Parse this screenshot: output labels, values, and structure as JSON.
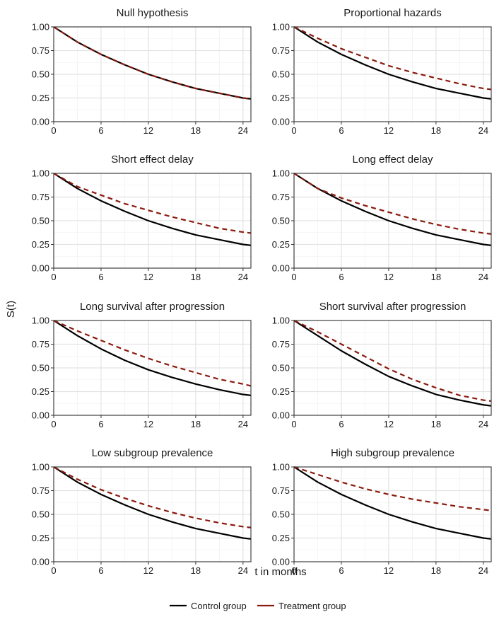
{
  "chart_data": {
    "type": "line",
    "layout": "2x4 facet grid",
    "ylabel": "S(t)",
    "xlabel": "t in months",
    "xlim": [
      0,
      25
    ],
    "ylim": [
      0,
      1
    ],
    "xticks": [
      "0",
      "6",
      "12",
      "18",
      "24"
    ],
    "yticks": [
      "0.00",
      "0.25",
      "0.50",
      "0.75",
      "1.00"
    ],
    "grid": true,
    "legend": {
      "position": "bottom",
      "entries": [
        {
          "name": "Control group",
          "color": "#000000",
          "style": "solid"
        },
        {
          "name": "Treatment group",
          "color": "#8B1A0E",
          "style": "dashed"
        }
      ]
    },
    "x": [
      0,
      3,
      6,
      9,
      12,
      15,
      18,
      21,
      24,
      25
    ],
    "panels": [
      {
        "title": "Null hypothesis",
        "control": [
          1.0,
          0.84,
          0.71,
          0.6,
          0.5,
          0.42,
          0.35,
          0.3,
          0.25,
          0.24
        ],
        "treatment": [
          1.0,
          0.84,
          0.71,
          0.6,
          0.5,
          0.42,
          0.35,
          0.3,
          0.25,
          0.24
        ]
      },
      {
        "title": "Proportional hazards",
        "control": [
          1.0,
          0.84,
          0.71,
          0.6,
          0.5,
          0.42,
          0.35,
          0.3,
          0.25,
          0.24
        ],
        "treatment": [
          1.0,
          0.88,
          0.77,
          0.68,
          0.59,
          0.52,
          0.46,
          0.4,
          0.35,
          0.34
        ]
      },
      {
        "title": "Short effect delay",
        "control": [
          1.0,
          0.84,
          0.71,
          0.6,
          0.5,
          0.42,
          0.35,
          0.3,
          0.25,
          0.24
        ],
        "treatment": [
          1.0,
          0.86,
          0.77,
          0.68,
          0.61,
          0.54,
          0.48,
          0.42,
          0.38,
          0.37
        ]
      },
      {
        "title": "Long effect delay",
        "control": [
          1.0,
          0.84,
          0.71,
          0.6,
          0.5,
          0.42,
          0.35,
          0.3,
          0.25,
          0.24
        ],
        "treatment": [
          1.0,
          0.84,
          0.74,
          0.66,
          0.59,
          0.52,
          0.46,
          0.41,
          0.37,
          0.36
        ]
      },
      {
        "title": "Long survival after progression",
        "control": [
          1.0,
          0.84,
          0.7,
          0.58,
          0.48,
          0.4,
          0.33,
          0.27,
          0.22,
          0.21
        ],
        "treatment": [
          1.0,
          0.89,
          0.79,
          0.69,
          0.6,
          0.52,
          0.45,
          0.38,
          0.33,
          0.31
        ]
      },
      {
        "title": "Short survival after progression",
        "control": [
          1.0,
          0.84,
          0.68,
          0.54,
          0.41,
          0.31,
          0.22,
          0.16,
          0.11,
          0.1
        ],
        "treatment": [
          1.0,
          0.88,
          0.75,
          0.62,
          0.49,
          0.38,
          0.29,
          0.21,
          0.16,
          0.15
        ]
      },
      {
        "title": "Low subgroup prevalence",
        "control": [
          1.0,
          0.84,
          0.71,
          0.6,
          0.5,
          0.42,
          0.35,
          0.3,
          0.25,
          0.24
        ],
        "treatment": [
          1.0,
          0.87,
          0.76,
          0.67,
          0.59,
          0.52,
          0.46,
          0.41,
          0.37,
          0.36
        ]
      },
      {
        "title": "High subgroup prevalence",
        "control": [
          1.0,
          0.84,
          0.71,
          0.6,
          0.5,
          0.42,
          0.35,
          0.3,
          0.25,
          0.24
        ],
        "treatment": [
          1.0,
          0.92,
          0.84,
          0.77,
          0.71,
          0.66,
          0.62,
          0.58,
          0.55,
          0.54
        ]
      }
    ]
  }
}
